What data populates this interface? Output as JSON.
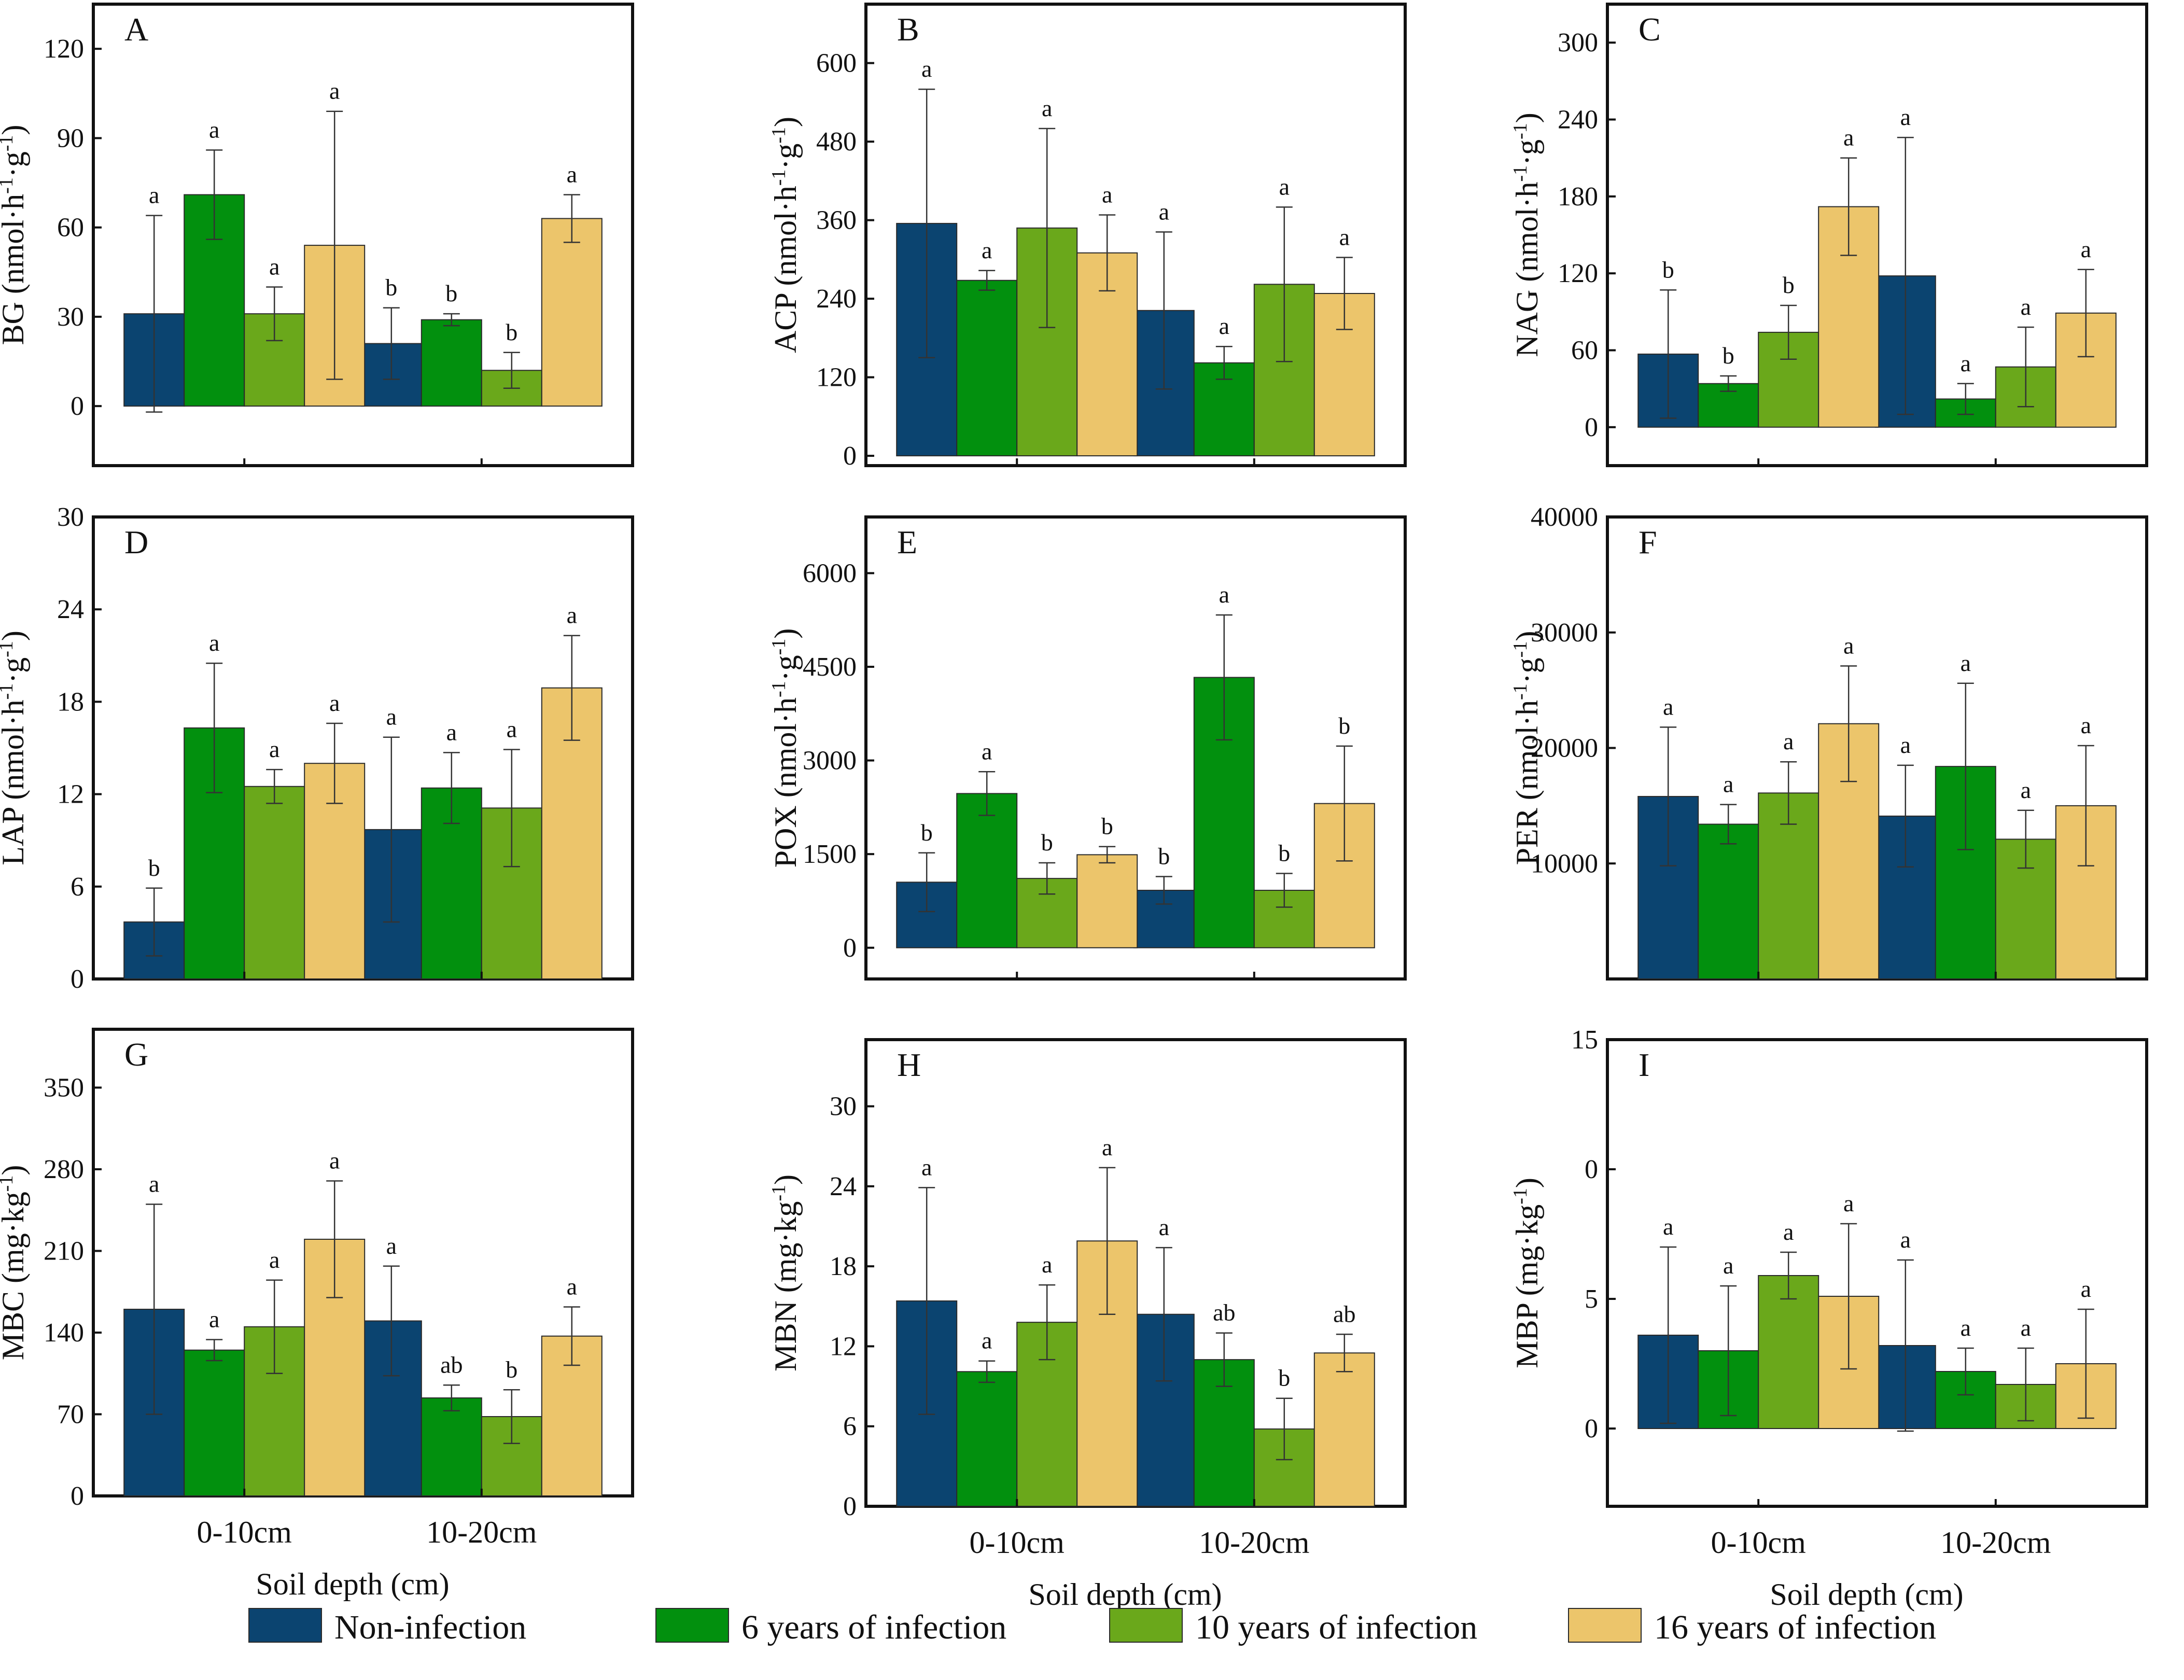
{
  "colors": {
    "Non-infection": "#0b4470",
    "6 years of infection": "#02900e",
    "10 years of infection": "#6aa81b",
    "16 years of infection": "#ecc56b",
    "axis": "#111111",
    "error": "#333333"
  },
  "legend": [
    "Non-infection",
    "6 years of infection",
    "10 years of infection",
    "16 years of infection"
  ],
  "chart_data": [
    {
      "letter": "A",
      "type": "bar",
      "ylabel": "BG (nmol·h⁻¹·g⁻¹)",
      "ylim": [
        -20,
        135
      ],
      "ticks": [
        "0",
        "30",
        "60",
        "90",
        "120"
      ],
      "categories": [
        "0-10cm",
        "10-20cm"
      ],
      "series": [
        {
          "name": "Non-infection",
          "values": [
            31,
            21
          ],
          "err": [
            33,
            12
          ],
          "sig": [
            "a",
            "b"
          ]
        },
        {
          "name": "6 years of infection",
          "values": [
            71,
            29
          ],
          "err": [
            15,
            2
          ],
          "sig": [
            "a",
            "b"
          ]
        },
        {
          "name": "10 years of infection",
          "values": [
            31,
            12
          ],
          "err": [
            9,
            6
          ],
          "sig": [
            "a",
            "b"
          ]
        },
        {
          "name": "16 years of infection",
          "values": [
            54,
            63
          ],
          "err": [
            45,
            8
          ],
          "sig": [
            "a",
            "a"
          ]
        }
      ]
    },
    {
      "letter": "B",
      "type": "bar",
      "ylabel": "ACP (nmol·h⁻¹·g⁻¹)",
      "ylim": [
        -15,
        690
      ],
      "ticks": [
        "0",
        "120",
        "240",
        "360",
        "480",
        "600"
      ],
      "categories": [
        "0-10cm",
        "10-20cm"
      ],
      "series": [
        {
          "name": "Non-infection",
          "values": [
            355,
            222
          ],
          "err": [
            205,
            120
          ],
          "sig": [
            "a",
            "a"
          ]
        },
        {
          "name": "6 years of infection",
          "values": [
            268,
            142
          ],
          "err": [
            15,
            25
          ],
          "sig": [
            "a",
            "a"
          ]
        },
        {
          "name": "10 years of infection",
          "values": [
            348,
            262
          ],
          "err": [
            152,
            118
          ],
          "sig": [
            "a",
            "a"
          ]
        },
        {
          "name": "16 years of infection",
          "values": [
            310,
            248
          ],
          "err": [
            58,
            55
          ],
          "sig": [
            "a",
            "a"
          ]
        }
      ]
    },
    {
      "letter": "C",
      "type": "bar",
      "ylabel": "NAG (nmol·h⁻¹·g⁻¹)",
      "ylim": [
        -30,
        330
      ],
      "ticks": [
        "0",
        "60",
        "120",
        "180",
        "240",
        "300"
      ],
      "categories": [
        "0-10cm",
        "10-20cm"
      ],
      "series": [
        {
          "name": "Non-infection",
          "values": [
            57,
            118
          ],
          "err": [
            50,
            108
          ],
          "sig": [
            "b",
            "a"
          ]
        },
        {
          "name": "6 years of infection",
          "values": [
            34,
            22
          ],
          "err": [
            6,
            12
          ],
          "sig": [
            "b",
            "a"
          ]
        },
        {
          "name": "10 years of infection",
          "values": [
            74,
            47
          ],
          "err": [
            21,
            31
          ],
          "sig": [
            "b",
            "a"
          ]
        },
        {
          "name": "16 years of infection",
          "values": [
            172,
            89
          ],
          "err": [
            38,
            34
          ],
          "sig": [
            "a",
            "a"
          ]
        }
      ]
    },
    {
      "letter": "D",
      "type": "bar",
      "ylabel": "LAP (nmol·h⁻¹·g⁻¹)",
      "ylim": [
        0,
        30
      ],
      "ticks": [
        "0",
        "6",
        "12",
        "18",
        "24",
        "30"
      ],
      "categories": [
        "0-10cm",
        "10-20cm"
      ],
      "series": [
        {
          "name": "Non-infection",
          "values": [
            3.7,
            9.7
          ],
          "err": [
            2.2,
            6
          ],
          "sig": [
            "b",
            "a"
          ]
        },
        {
          "name": "6 years of infection",
          "values": [
            16.3,
            12.4
          ],
          "err": [
            4.2,
            2.3
          ],
          "sig": [
            "a",
            "a"
          ]
        },
        {
          "name": "10 years of infection",
          "values": [
            12.5,
            11.1
          ],
          "err": [
            1.1,
            3.8
          ],
          "sig": [
            "a",
            "a"
          ]
        },
        {
          "name": "16 years of infection",
          "values": [
            14,
            18.9
          ],
          "err": [
            2.6,
            3.4
          ],
          "sig": [
            "a",
            "a"
          ]
        }
      ]
    },
    {
      "letter": "E",
      "type": "bar",
      "ylabel": "POX (nmol·h⁻¹·g⁻¹)",
      "ylim": [
        -500,
        6900
      ],
      "ticks": [
        "0",
        "1500",
        "3000",
        "4500",
        "6000"
      ],
      "categories": [
        "0-10cm",
        "10-20cm"
      ],
      "series": [
        {
          "name": "Non-infection",
          "values": [
            1050,
            920
          ],
          "err": [
            470,
            220
          ],
          "sig": [
            "b",
            "b"
          ]
        },
        {
          "name": "6 years of infection",
          "values": [
            2470,
            4330
          ],
          "err": [
            350,
            1000
          ],
          "sig": [
            "a",
            "a"
          ]
        },
        {
          "name": "10 years of infection",
          "values": [
            1110,
            920
          ],
          "err": [
            250,
            270
          ],
          "sig": [
            "b",
            "b"
          ]
        },
        {
          "name": "16 years of infection",
          "values": [
            1490,
            2310
          ],
          "err": [
            130,
            920
          ],
          "sig": [
            "b",
            "b"
          ]
        }
      ]
    },
    {
      "letter": "F",
      "type": "bar",
      "ylabel": "PER (nmol·h⁻¹·g⁻¹)",
      "ylim": [
        0,
        40000
      ],
      "ticks": [
        "10000",
        "20000",
        "30000",
        "40000"
      ],
      "categories": [
        "0-10cm",
        "10-20cm"
      ],
      "series": [
        {
          "name": "Non-infection",
          "values": [
            15800,
            14100
          ],
          "err": [
            6000,
            4400
          ],
          "sig": [
            "a",
            "a"
          ]
        },
        {
          "name": "6 years of infection",
          "values": [
            13400,
            18400
          ],
          "err": [
            1700,
            7200
          ],
          "sig": [
            "a",
            "a"
          ]
        },
        {
          "name": "10 years of infection",
          "values": [
            16100,
            12100
          ],
          "err": [
            2700,
            2500
          ],
          "sig": [
            "a",
            "a"
          ]
        },
        {
          "name": "16 years of infection",
          "values": [
            22100,
            15000
          ],
          "err": [
            5000,
            5200
          ],
          "sig": [
            "a",
            "a"
          ]
        }
      ]
    },
    {
      "letter": "G",
      "type": "bar",
      "ylabel": "MBC (mg·kg⁻¹)",
      "ylim": [
        0,
        400
      ],
      "ticks": [
        "0",
        "70",
        "140",
        "210",
        "280",
        "350"
      ],
      "categories": [
        "0-10cm",
        "10-20cm"
      ],
      "series": [
        {
          "name": "Non-infection",
          "values": [
            160,
            150
          ],
          "err": [
            90,
            47
          ],
          "sig": [
            "a",
            "a"
          ]
        },
        {
          "name": "6 years of infection",
          "values": [
            125,
            84
          ],
          "err": [
            9,
            11
          ],
          "sig": [
            "a",
            "ab"
          ]
        },
        {
          "name": "10 years of infection",
          "values": [
            145,
            68
          ],
          "err": [
            40,
            23
          ],
          "sig": [
            "a",
            "b"
          ]
        },
        {
          "name": "16 years of infection",
          "values": [
            220,
            137
          ],
          "err": [
            50,
            25
          ],
          "sig": [
            "a",
            "a"
          ]
        }
      ]
    },
    {
      "letter": "H",
      "type": "bar",
      "ylabel": "MBN (mg·kg⁻¹)",
      "ylim": [
        0,
        35
      ],
      "ticks": [
        "0",
        "6",
        "12",
        "18",
        "24",
        "30"
      ],
      "categories": [
        "0-10cm",
        "10-20cm"
      ],
      "series": [
        {
          "name": "Non-infection",
          "values": [
            15.4,
            14.4
          ],
          "err": [
            8.5,
            5
          ],
          "sig": [
            "a",
            "a"
          ]
        },
        {
          "name": "6 years of infection",
          "values": [
            10.1,
            11
          ],
          "err": [
            0.8,
            2
          ],
          "sig": [
            "a",
            "ab"
          ]
        },
        {
          "name": "10 years of infection",
          "values": [
            13.8,
            5.8
          ],
          "err": [
            2.8,
            2.3
          ],
          "sig": [
            "a",
            "b"
          ]
        },
        {
          "name": "16 years of infection",
          "values": [
            19.9,
            11.5
          ],
          "err": [
            5.5,
            1.4
          ],
          "sig": [
            "a",
            "ab"
          ]
        }
      ]
    },
    {
      "letter": "I",
      "type": "bar",
      "ylabel": "MBP (mg·kg⁻¹)",
      "ylim": [
        -3,
        15
      ],
      "ticks": [
        "0",
        "5",
        "0",
        "15"
      ],
      "categories": [
        "0-10cm",
        "10-20cm"
      ],
      "series": [
        {
          "name": "Non-infection",
          "values": [
            3.6,
            3.2
          ],
          "err": [
            3.4,
            3.3
          ],
          "sig": [
            "a",
            "a"
          ]
        },
        {
          "name": "6 years of infection",
          "values": [
            3,
            2.2
          ],
          "err": [
            2.5,
            0.9
          ],
          "sig": [
            "a",
            "a"
          ]
        },
        {
          "name": "10 years of infection",
          "values": [
            5.9,
            1.7
          ],
          "err": [
            0.9,
            1.4
          ],
          "sig": [
            "a",
            "a"
          ]
        },
        {
          "name": "16 years of infection",
          "values": [
            5.1,
            2.5
          ],
          "err": [
            2.8,
            2.1
          ],
          "sig": [
            "a",
            "a"
          ]
        }
      ]
    }
  ],
  "xaxis": {
    "label": "Soil depth (cm)"
  }
}
